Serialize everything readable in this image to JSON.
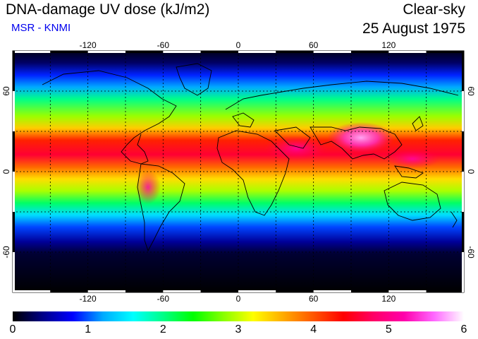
{
  "header": {
    "title": "DNA-damage UV dose (kJ/m2)",
    "subtitle": "MSR - KNMI",
    "condition": "Clear-sky",
    "date": "25 August 1975"
  },
  "map": {
    "lon_ticks": [
      "-120",
      "-60",
      "0",
      "60",
      "120"
    ],
    "lat_ticks": [
      "60",
      "0",
      "-60"
    ],
    "lon_range": [
      -180,
      180
    ],
    "lat_range": [
      -90,
      90
    ],
    "grid_lon": [
      -150,
      -120,
      -90,
      -60,
      -30,
      0,
      30,
      60,
      90,
      120,
      150
    ],
    "grid_lat": [
      -60,
      -30,
      0,
      30,
      60
    ]
  },
  "colorbar": {
    "labels": [
      "0",
      "1",
      "2",
      "3",
      "4",
      "5",
      "6"
    ],
    "range": [
      0,
      6
    ],
    "colors": [
      "#000000",
      "#000088",
      "#0000ff",
      "#00aaff",
      "#00ffff",
      "#00ff88",
      "#00ff00",
      "#88ff00",
      "#ffff00",
      "#ffaa00",
      "#ff5500",
      "#ff0000",
      "#ff0066",
      "#ff00aa",
      "#ff66ff",
      "#ffffff"
    ]
  }
}
